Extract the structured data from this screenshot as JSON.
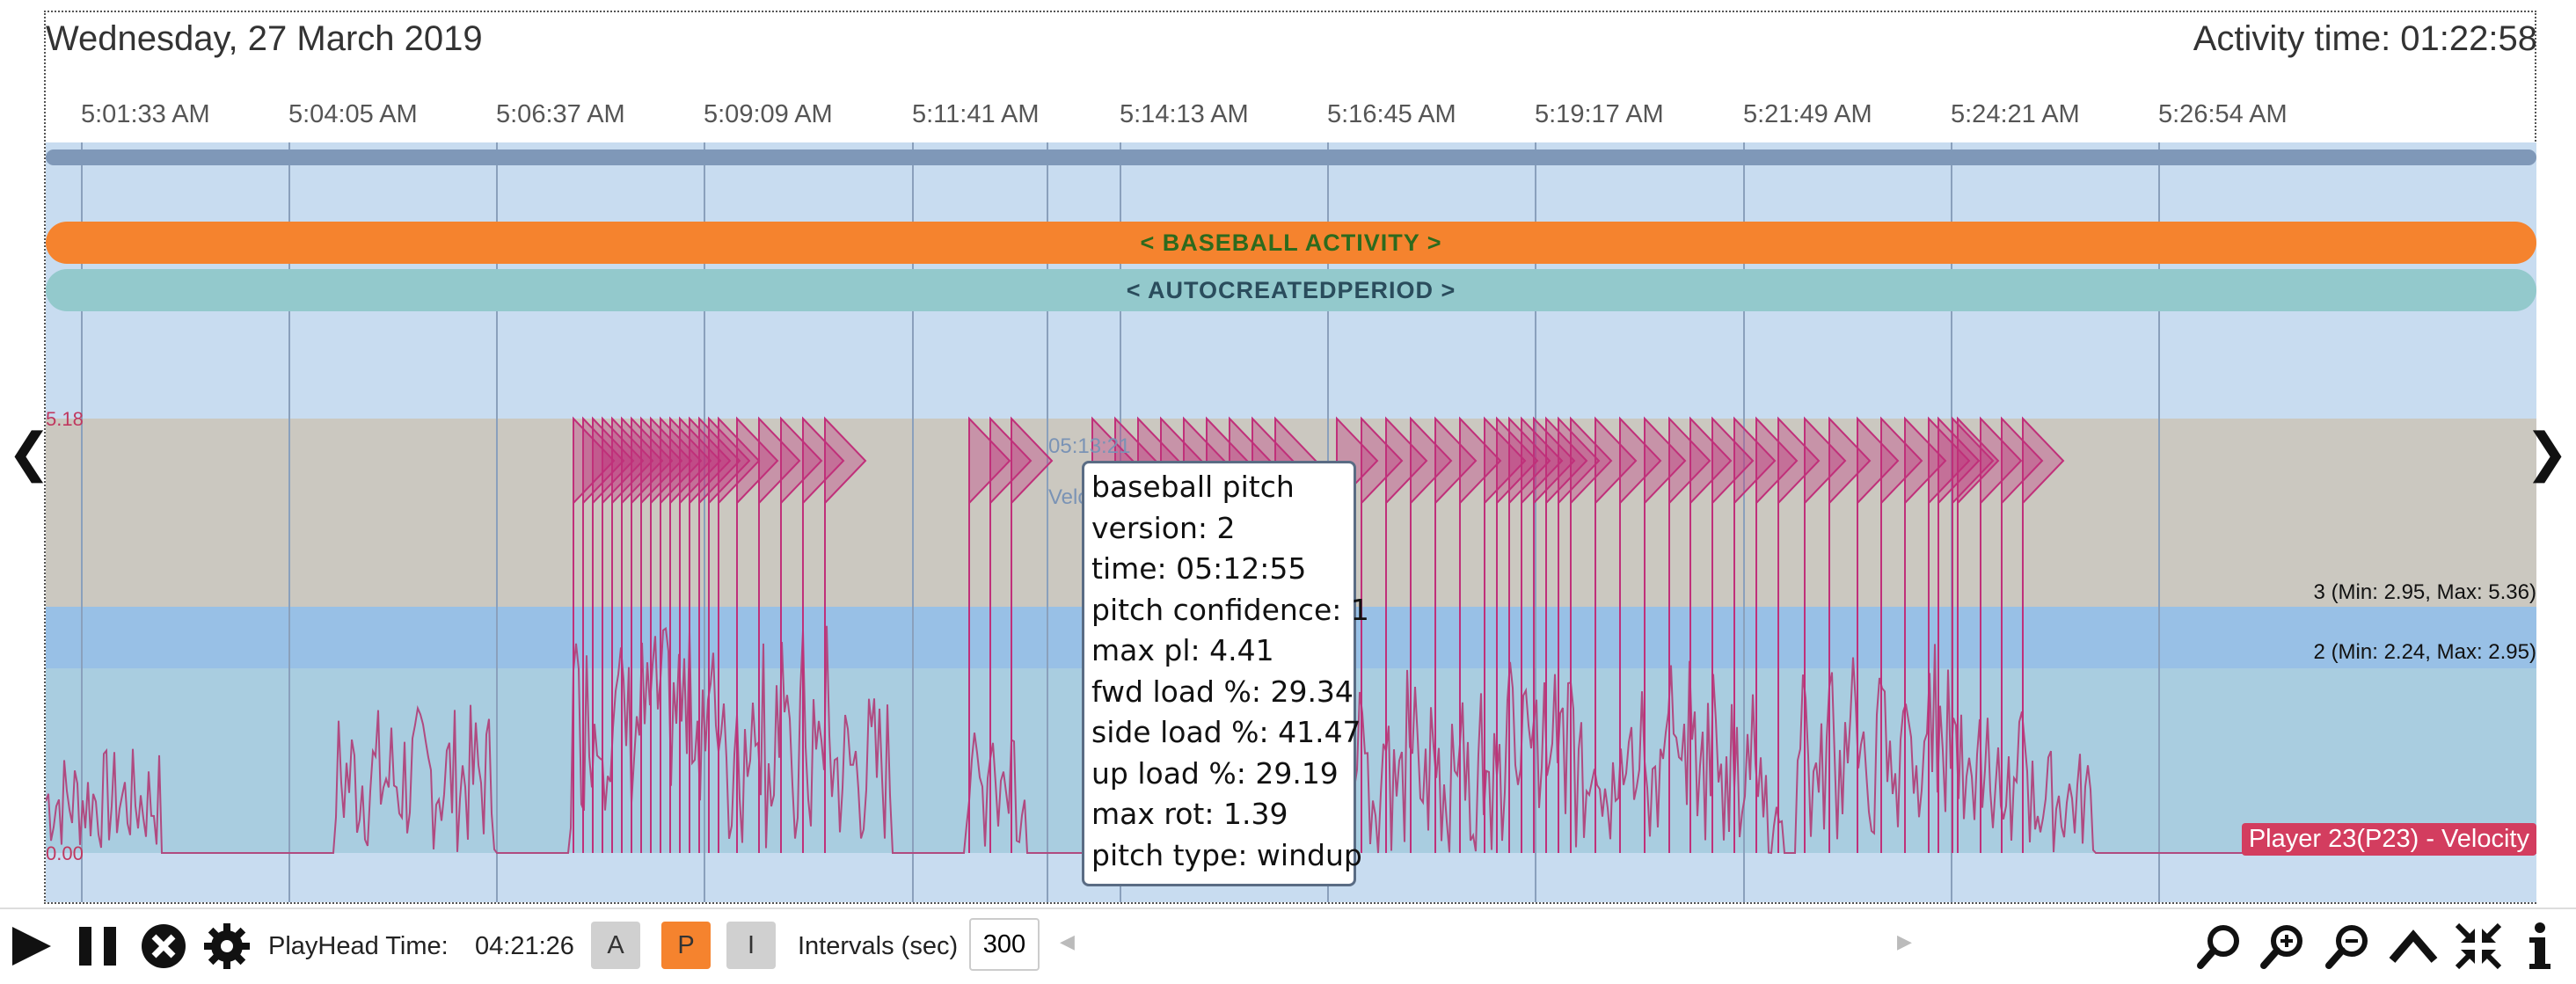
{
  "header": {
    "date": "Wednesday, 27 March 2019",
    "activity_time": "Activity time: 01:22:58"
  },
  "time_ticks": [
    "5:01:33 AM",
    "5:04:05 AM",
    "5:06:37 AM",
    "5:09:09 AM",
    "5:11:41 AM",
    "5:14:13 AM",
    "5:16:45 AM",
    "5:19:17 AM",
    "5:21:49 AM",
    "5:24:21 AM",
    "5:26:54 AM"
  ],
  "periods": {
    "baseball": "< BASEBALL ACTIVITY >",
    "auto": "< AUTOCREATEDPERIOD >"
  },
  "bands": {
    "band3": "3 (Min: 2.95, Max: 5.36)",
    "band2": "2 (Min: 2.24, Max: 2.95)"
  },
  "axis": {
    "max": "5.18",
    "min": "0.00"
  },
  "cursor": {
    "time": "05:13:21",
    "label": "Velo"
  },
  "player_badge": "Player 23(P23) - Velocity",
  "tooltip": {
    "lines": [
      "baseball pitch",
      "version: 2",
      "time: 05:12:55",
      "pitch confidence: 1",
      "max pl: 4.41",
      "fwd load %: 29.34",
      "side load %: 41.47",
      "up load %: 29.19",
      "max rot: 1.39",
      "pitch type: windup"
    ]
  },
  "toolbar": {
    "playhead_label": "PlayHead Time:",
    "playhead_value": "04:21:26",
    "btn_a": "A",
    "btn_p": "P",
    "btn_i": "I",
    "intervals_label": "Intervals (sec)",
    "intervals_value": "300"
  },
  "colors": {
    "baseball": "#f5832e",
    "auto": "#93c9cc",
    "marker": "#c0307a",
    "velocity": "#b04a80"
  },
  "icons": [
    "play-icon",
    "pause-icon",
    "close-circle-icon",
    "gear-icon",
    "search-icon",
    "zoom-in-icon",
    "zoom-out-icon",
    "chevron-up-icon",
    "compress-icon",
    "info-icon"
  ]
}
